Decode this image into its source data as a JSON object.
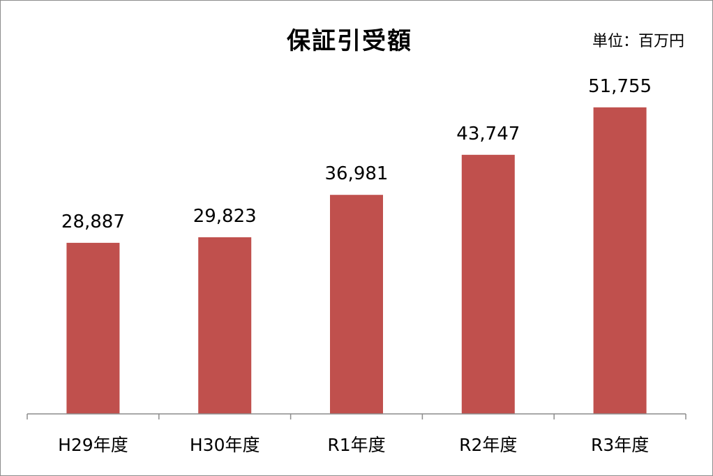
{
  "chart_data": {
    "type": "bar",
    "title": "保証引受額",
    "unit": "単位：百万円",
    "categories": [
      "H29年度",
      "H30年度",
      "R1年度",
      "R2年度",
      "R3年度"
    ],
    "values": [
      28887,
      29823,
      36981,
      43747,
      51755
    ],
    "value_labels": [
      "28,887",
      "29,823",
      "36,981",
      "43,747",
      "51,755"
    ],
    "ylim": [
      0,
      55000
    ],
    "grid": false,
    "legend": "none",
    "bar_color": "#C0504D",
    "axis_color": "#8C8C8C"
  }
}
